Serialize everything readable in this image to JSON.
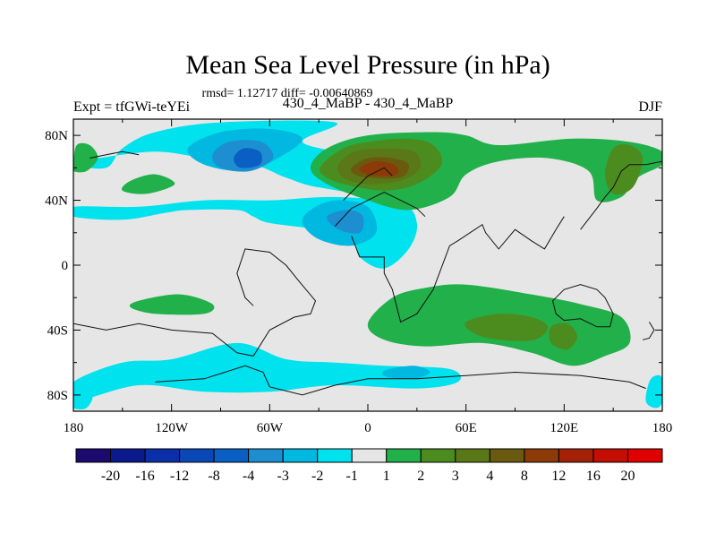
{
  "chart_data": {
    "type": "heatmap",
    "title": "Mean Sea Level Pressure (in hPa)",
    "stats_text": "rmsd= 1.12717 diff= -0.00640869",
    "left_label": "Expt = tfGWi-teYEi",
    "center_label": "430_4_MaBP - 430_4_MaBP",
    "right_label": "DJF",
    "x_ticks": [
      "180",
      "120W",
      "60W",
      "0",
      "60E",
      "120E",
      "180"
    ],
    "y_ticks": [
      "80N",
      "40N",
      "0",
      "40S",
      "80S"
    ],
    "x_tick_values": [
      -180,
      -120,
      -60,
      0,
      60,
      120,
      180
    ],
    "y_tick_values": [
      80,
      40,
      0,
      -40,
      -80
    ],
    "xlim": [
      -180,
      180
    ],
    "ylim": [
      -90,
      90
    ],
    "colorbar_labels": [
      "-20",
      "-16",
      "-12",
      "-8",
      "-4",
      "-3",
      "-2",
      "-1",
      "1",
      "2",
      "3",
      "4",
      "8",
      "12",
      "16",
      "20"
    ],
    "colorbar_colors": [
      "#1c0a6e",
      "#0a1a8c",
      "#0a2fa8",
      "#0a48b8",
      "#0a5fc4",
      "#1d8fd0",
      "#00b8e0",
      "#00e2ee",
      "#e6e6e6",
      "#22b04a",
      "#4c8c1f",
      "#5a7818",
      "#6a5a10",
      "#8c3a08",
      "#a42006",
      "#c40e04",
      "#e00000"
    ],
    "contours": [
      {
        "level": "-1",
        "color": "#00e2ee",
        "points": [
          [
            -180,
            62
          ],
          [
            -160,
            60
          ],
          [
            -150,
            72
          ],
          [
            -130,
            82
          ],
          [
            -90,
            88
          ],
          [
            -20,
            88
          ],
          [
            -40,
            76
          ],
          [
            -10,
            66
          ],
          [
            10,
            44
          ],
          [
            -30,
            48
          ],
          [
            -50,
            54
          ],
          [
            -70,
            62
          ],
          [
            -100,
            66
          ],
          [
            -130,
            70
          ],
          [
            -165,
            66
          ],
          [
            -180,
            64
          ]
        ]
      },
      {
        "level": "-1",
        "color": "#00e2ee",
        "points": [
          [
            -180,
            30
          ],
          [
            -150,
            28
          ],
          [
            -125,
            32
          ],
          [
            -110,
            34
          ],
          [
            -80,
            34
          ],
          [
            -70,
            30
          ],
          [
            -60,
            26
          ],
          [
            -30,
            22
          ],
          [
            -10,
            18
          ],
          [
            -5,
            5
          ],
          [
            10,
            -2
          ],
          [
            25,
            10
          ],
          [
            30,
            26
          ],
          [
            20,
            38
          ],
          [
            -20,
            42
          ],
          [
            -60,
            40
          ],
          [
            -100,
            40
          ],
          [
            -140,
            36
          ],
          [
            -180,
            36
          ]
        ]
      },
      {
        "level": "-1",
        "color": "#00e2ee",
        "points": [
          [
            -180,
            -72
          ],
          [
            -150,
            -60
          ],
          [
            -120,
            -58
          ],
          [
            -80,
            -48
          ],
          [
            -50,
            -58
          ],
          [
            -20,
            -60
          ],
          [
            10,
            -62
          ],
          [
            50,
            -64
          ],
          [
            55,
            -72
          ],
          [
            30,
            -76
          ],
          [
            -20,
            -74
          ],
          [
            -60,
            -78
          ],
          [
            -100,
            -78
          ],
          [
            -140,
            -74
          ],
          [
            -180,
            -84
          ]
        ]
      },
      {
        "level": "-1",
        "color": "#00e2ee",
        "points": [
          [
            -180,
            -82
          ],
          [
            -178,
            -74
          ],
          [
            -172,
            -72
          ],
          [
            -168,
            -80
          ],
          [
            -172,
            -88
          ],
          [
            -180,
            -88
          ]
        ]
      },
      {
        "level": "-1",
        "color": "#00e2ee",
        "points": [
          [
            170,
            -84
          ],
          [
            172,
            -72
          ],
          [
            176,
            -68
          ],
          [
            180,
            -70
          ],
          [
            180,
            -84
          ],
          [
            176,
            -88
          ]
        ]
      },
      {
        "level": "-2",
        "color": "#00b8e0",
        "points": [
          [
            -110,
            72
          ],
          [
            -90,
            82
          ],
          [
            -60,
            84
          ],
          [
            -40,
            78
          ],
          [
            -55,
            66
          ],
          [
            -75,
            58
          ],
          [
            -100,
            62
          ]
        ]
      },
      {
        "level": "-2",
        "color": "#00b8e0",
        "points": [
          [
            -35,
            34
          ],
          [
            -20,
            40
          ],
          [
            0,
            36
          ],
          [
            5,
            20
          ],
          [
            -10,
            12
          ],
          [
            -30,
            16
          ],
          [
            -40,
            26
          ]
        ]
      },
      {
        "level": "-2",
        "color": "#00b8e0",
        "points": [
          [
            10,
            -65
          ],
          [
            28,
            -62
          ],
          [
            38,
            -66
          ],
          [
            28,
            -70
          ],
          [
            12,
            -69
          ]
        ]
      },
      {
        "level": "-3",
        "color": "#1d8fd0",
        "points": [
          [
            -95,
            68
          ],
          [
            -85,
            76
          ],
          [
            -65,
            76
          ],
          [
            -58,
            66
          ],
          [
            -72,
            58
          ],
          [
            -90,
            60
          ]
        ]
      },
      {
        "level": "-3",
        "color": "#1d8fd0",
        "points": [
          [
            -25,
            30
          ],
          [
            -12,
            34
          ],
          [
            -3,
            30
          ],
          [
            -5,
            20
          ],
          [
            -18,
            22
          ]
        ]
      },
      {
        "level": "-4",
        "color": "#0a5fc4",
        "points": [
          [
            -82,
            66
          ],
          [
            -76,
            72
          ],
          [
            -66,
            70
          ],
          [
            -66,
            62
          ],
          [
            -78,
            60
          ]
        ]
      },
      {
        "level": "1",
        "color": "#22b04a",
        "points": [
          [
            -180,
            62
          ],
          [
            -178,
            74
          ],
          [
            -170,
            74
          ],
          [
            -165,
            66
          ],
          [
            -172,
            58
          ],
          [
            -180,
            58
          ]
        ]
      },
      {
        "level": "1",
        "color": "#22b04a",
        "points": [
          [
            -145,
            52
          ],
          [
            -130,
            56
          ],
          [
            -118,
            50
          ],
          [
            -135,
            44
          ],
          [
            -150,
            46
          ]
        ]
      },
      {
        "level": "1",
        "color": "#22b04a",
        "points": [
          [
            -35,
            60
          ],
          [
            -25,
            72
          ],
          [
            0,
            80
          ],
          [
            40,
            82
          ],
          [
            60,
            80
          ],
          [
            80,
            74
          ],
          [
            125,
            78
          ],
          [
            160,
            76
          ],
          [
            180,
            70
          ],
          [
            180,
            62
          ],
          [
            165,
            54
          ],
          [
            155,
            42
          ],
          [
            140,
            40
          ],
          [
            135,
            58
          ],
          [
            110,
            66
          ],
          [
            80,
            64
          ],
          [
            60,
            56
          ],
          [
            50,
            42
          ],
          [
            25,
            34
          ],
          [
            0,
            40
          ],
          [
            -25,
            50
          ]
        ]
      },
      {
        "level": "1",
        "color": "#22b04a",
        "points": [
          [
            -140,
            -22
          ],
          [
            -115,
            -18
          ],
          [
            -95,
            -24
          ],
          [
            -100,
            -30
          ],
          [
            -130,
            -30
          ],
          [
            -145,
            -26
          ]
        ]
      },
      {
        "level": "1",
        "color": "#22b04a",
        "points": [
          [
            0,
            -36
          ],
          [
            15,
            -20
          ],
          [
            35,
            -14
          ],
          [
            60,
            -12
          ],
          [
            100,
            -18
          ],
          [
            130,
            -24
          ],
          [
            155,
            -32
          ],
          [
            160,
            -48
          ],
          [
            145,
            -56
          ],
          [
            125,
            -62
          ],
          [
            100,
            -54
          ],
          [
            70,
            -48
          ],
          [
            35,
            -50
          ],
          [
            10,
            -46
          ]
        ]
      },
      {
        "level": "2",
        "color": "#4c8c1f",
        "points": [
          [
            -28,
            62
          ],
          [
            -15,
            72
          ],
          [
            0,
            76
          ],
          [
            25,
            78
          ],
          [
            40,
            74
          ],
          [
            45,
            62
          ],
          [
            30,
            50
          ],
          [
            10,
            46
          ],
          [
            -15,
            50
          ],
          [
            -28,
            56
          ]
        ]
      },
      {
        "level": "2",
        "color": "#4c8c1f",
        "points": [
          [
            150,
            72
          ],
          [
            160,
            74
          ],
          [
            168,
            66
          ],
          [
            162,
            48
          ],
          [
            150,
            44
          ],
          [
            145,
            56
          ]
        ]
      },
      {
        "level": "2",
        "color": "#4c8c1f",
        "points": [
          [
            60,
            -35
          ],
          [
            80,
            -30
          ],
          [
            100,
            -32
          ],
          [
            110,
            -38
          ],
          [
            102,
            -46
          ],
          [
            80,
            -46
          ],
          [
            65,
            -42
          ]
        ]
      },
      {
        "level": "2",
        "color": "#4c8c1f",
        "points": [
          [
            112,
            -38
          ],
          [
            122,
            -36
          ],
          [
            128,
            -44
          ],
          [
            122,
            -52
          ],
          [
            112,
            -48
          ]
        ]
      },
      {
        "level": "3",
        "color": "#5a7818",
        "points": [
          [
            -18,
            62
          ],
          [
            -8,
            70
          ],
          [
            10,
            72
          ],
          [
            28,
            70
          ],
          [
            32,
            60
          ],
          [
            20,
            52
          ],
          [
            0,
            50
          ],
          [
            -15,
            54
          ]
        ]
      },
      {
        "level": "4",
        "color": "#6a5a10",
        "points": [
          [
            -10,
            60
          ],
          [
            0,
            66
          ],
          [
            15,
            66
          ],
          [
            25,
            62
          ],
          [
            20,
            54
          ],
          [
            0,
            54
          ],
          [
            -8,
            56
          ]
        ]
      },
      {
        "level": "8",
        "color": "#8c3a08",
        "points": [
          [
            -5,
            60
          ],
          [
            4,
            64
          ],
          [
            16,
            62
          ],
          [
            18,
            56
          ],
          [
            5,
            55
          ],
          [
            -3,
            57
          ]
        ]
      }
    ],
    "coastlines": [
      [
        [
          -180,
          -36
        ],
        [
          -160,
          -40
        ],
        [
          -140,
          -36
        ],
        [
          -120,
          -40
        ],
        [
          -95,
          -42
        ],
        [
          -80,
          -54
        ],
        [
          -70,
          -56
        ],
        [
          -60,
          -40
        ],
        [
          -45,
          -32
        ],
        [
          -35,
          -30
        ],
        [
          -32,
          -22
        ],
        [
          -42,
          -10
        ],
        [
          -50,
          0
        ],
        [
          -60,
          8
        ],
        [
          -75,
          10
        ],
        [
          -80,
          -5
        ],
        [
          -75,
          -20
        ],
        [
          -70,
          -25
        ]
      ],
      [
        [
          -130,
          -72
        ],
        [
          -100,
          -70
        ],
        [
          -75,
          -62
        ],
        [
          -64,
          -66
        ],
        [
          -60,
          -75
        ],
        [
          -40,
          -80
        ],
        [
          -20,
          -74
        ],
        [
          0,
          -70
        ],
        [
          30,
          -70
        ],
        [
          60,
          -68
        ],
        [
          90,
          -66
        ],
        [
          130,
          -68
        ],
        [
          160,
          -72
        ],
        [
          170,
          -76
        ]
      ],
      [
        [
          -10,
          18
        ],
        [
          -5,
          5
        ],
        [
          10,
          5
        ],
        [
          10,
          -5
        ],
        [
          15,
          -15
        ],
        [
          20,
          -35
        ],
        [
          30,
          -30
        ],
        [
          40,
          -15
        ],
        [
          50,
          12
        ],
        [
          55,
          15
        ],
        [
          70,
          25
        ],
        [
          72,
          20
        ],
        [
          80,
          10
        ],
        [
          90,
          22
        ],
        [
          100,
          15
        ],
        [
          108,
          10
        ],
        [
          115,
          22
        ],
        [
          120,
          30
        ]
      ],
      [
        [
          -20,
          24
        ],
        [
          -10,
          35
        ],
        [
          0,
          40
        ],
        [
          10,
          45
        ],
        [
          20,
          40
        ],
        [
          30,
          35
        ],
        [
          35,
          30
        ]
      ],
      [
        [
          -15,
          40
        ],
        [
          -5,
          50
        ],
        [
          0,
          55
        ],
        [
          10,
          60
        ],
        [
          15,
          55
        ]
      ],
      [
        [
          115,
          -20
        ],
        [
          120,
          -15
        ],
        [
          130,
          -12
        ],
        [
          140,
          -15
        ],
        [
          145,
          -20
        ],
        [
          150,
          -30
        ],
        [
          148,
          -38
        ],
        [
          140,
          -38
        ],
        [
          130,
          -33
        ],
        [
          120,
          -34
        ],
        [
          115,
          -30
        ],
        [
          113,
          -22
        ],
        [
          115,
          -20
        ]
      ],
      [
        [
          172,
          -35
        ],
        [
          175,
          -40
        ],
        [
          172,
          -45
        ],
        [
          168,
          -46
        ]
      ],
      [
        [
          130,
          22
        ],
        [
          140,
          35
        ],
        [
          145,
          42
        ],
        [
          150,
          48
        ],
        [
          155,
          58
        ],
        [
          160,
          62
        ],
        [
          170,
          62
        ],
        [
          180,
          64
        ]
      ],
      [
        [
          -170,
          66
        ],
        [
          -160,
          68
        ],
        [
          -150,
          70
        ],
        [
          -140,
          68
        ]
      ]
    ]
  }
}
